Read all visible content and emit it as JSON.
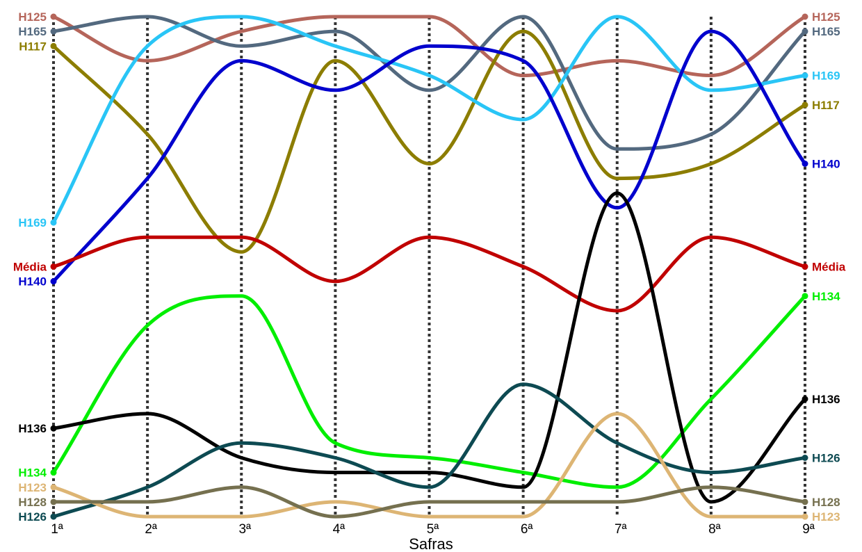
{
  "chart_data": {
    "type": "line",
    "subtype": "bump-chart (ranking by harvest)",
    "xlabel": "Safras",
    "categories": [
      "1ª",
      "2ª",
      "3ª",
      "4ª",
      "5ª",
      "6ª",
      "7ª",
      "8ª",
      "9ª"
    ],
    "y_axis": "rank position (1 = top, 18 = bottom), no printed axis",
    "ylim": [
      1,
      18
    ],
    "grid": "vertical dotted lines at each category",
    "series": [
      {
        "name": "H125",
        "color": "#B5655A",
        "ranks": [
          1,
          4,
          2,
          1,
          1,
          5,
          4,
          5,
          1
        ]
      },
      {
        "name": "H165",
        "color": "#53697F",
        "ranks": [
          2,
          1,
          3,
          2,
          6,
          1,
          10,
          9,
          2
        ]
      },
      {
        "name": "H117",
        "color": "#8C7D00",
        "ranks": [
          3,
          9,
          17,
          4,
          11,
          2,
          12,
          11,
          7
        ]
      },
      {
        "name": "H169",
        "color": "#29C5F6",
        "ranks": [
          15,
          3,
          1,
          3,
          5,
          8,
          1,
          6,
          5
        ]
      },
      {
        "name": "H140",
        "color": "#0000CD",
        "ranks": [
          19,
          12,
          4,
          6,
          3,
          4,
          14,
          2,
          11
        ]
      },
      {
        "name": "Média",
        "color": "#C00000",
        "ranks": [
          18,
          16,
          16,
          19,
          16,
          18,
          21,
          16,
          18
        ]
      },
      {
        "name": "H134",
        "color": "#00EE00",
        "ranks": [
          32,
          22,
          20,
          30,
          31,
          32,
          33,
          27,
          20
        ]
      },
      {
        "name": "H136",
        "color": "#000000",
        "ranks": [
          29,
          28,
          31,
          32,
          32,
          33,
          13,
          34,
          27
        ]
      },
      {
        "name": "H126",
        "color": "#0D4A52",
        "ranks": [
          35,
          33,
          30,
          31,
          33,
          26,
          30,
          32,
          31
        ]
      },
      {
        "name": "H123",
        "color": "#DDB574",
        "ranks": [
          33,
          35,
          35,
          34,
          35,
          35,
          28,
          35,
          35
        ]
      },
      {
        "name": "H128",
        "color": "#75704F",
        "ranks": [
          34,
          34,
          33,
          35,
          34,
          34,
          34,
          33,
          34
        ]
      }
    ],
    "left_labels": [
      {
        "text": "H125",
        "color": "#B5655A",
        "series": "H125"
      },
      {
        "text": "H165",
        "color": "#53697F",
        "series": "H165"
      },
      {
        "text": "H117",
        "color": "#8C7D00",
        "series": "H117"
      },
      {
        "text": "H169",
        "color": "#29C5F6",
        "series": "H169"
      },
      {
        "text": "Média",
        "color": "#C00000",
        "series": "Média"
      },
      {
        "text": "H140",
        "color": "#0000CD",
        "series": "H140"
      },
      {
        "text": "H136",
        "color": "#000000",
        "series": "H136"
      },
      {
        "text": "H134",
        "color": "#00EE00",
        "series": "H134"
      },
      {
        "text": "H123",
        "color": "#DDB574",
        "series": "H123"
      },
      {
        "text": "H128",
        "color": "#75704F",
        "series": "H128"
      },
      {
        "text": "H126",
        "color": "#0D4A52",
        "series": "H126"
      }
    ],
    "right_labels": [
      {
        "text": "H125",
        "color": "#B5655A",
        "series": "H125"
      },
      {
        "text": "H165",
        "color": "#53697F",
        "series": "H165"
      },
      {
        "text": "H169",
        "color": "#29C5F6",
        "series": "H169"
      },
      {
        "text": "H117",
        "color": "#8C7D00",
        "series": "H117"
      },
      {
        "text": "H140",
        "color": "#0000CD",
        "series": "H140"
      },
      {
        "text": "Média",
        "color": "#C00000",
        "series": "Média"
      },
      {
        "text": "H134",
        "color": "#00EE00",
        "series": "H134"
      },
      {
        "text": "H136",
        "color": "#000000",
        "series": "H136"
      },
      {
        "text": "H126",
        "color": "#0D4A52",
        "series": "H126"
      },
      {
        "text": "H128",
        "color": "#75704F",
        "series": "H128"
      },
      {
        "text": "H123",
        "color": "#DDB574",
        "series": "H123"
      }
    ]
  }
}
